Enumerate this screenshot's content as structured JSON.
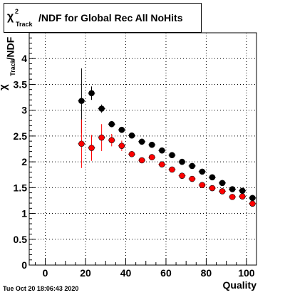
{
  "title": {
    "chi_symbol": "χ",
    "chi_sup": "2",
    "chi_sub": "Track",
    "rest": "/NDF for Global Rec All NoHits"
  },
  "axis_labels": {
    "y_ndf": "/NDF",
    "y_chi": "χ",
    "y_sup": "2",
    "y_sub": "Track",
    "x": "Quality"
  },
  "footer": {
    "timestamp": "Tue Oct 20 18:06:43 2020"
  },
  "colors": {
    "series_black": "#000000",
    "series_red": "#ff0000"
  },
  "chart_data": {
    "type": "scatter",
    "title": "χ2 Track /NDF for Global Rec All NoHits",
    "xlabel": "Quality",
    "ylabel": "χ2 Track /NDF",
    "xlim": [
      -8,
      105
    ],
    "ylim": [
      0,
      4.5
    ],
    "x_ticks": [
      0,
      20,
      40,
      60,
      80,
      100
    ],
    "y_ticks": [
      0,
      0.5,
      1,
      1.5,
      2,
      2.5,
      3,
      3.5,
      4
    ],
    "y_tick_labels": [
      "0",
      "0.5",
      "1",
      "1.5",
      "2",
      "2.5",
      "3",
      "3.5",
      "4"
    ],
    "grid": true,
    "legend": "none",
    "series": [
      {
        "color": "#000000",
        "x": [
          18,
          23,
          28,
          33,
          38,
          43,
          48,
          53,
          58,
          63,
          68,
          73,
          78,
          83,
          88,
          93,
          98,
          103
        ],
        "y": [
          3.18,
          3.33,
          3.03,
          2.73,
          2.62,
          2.51,
          2.39,
          2.33,
          2.22,
          2.13,
          2.0,
          1.92,
          1.81,
          1.7,
          1.59,
          1.47,
          1.44,
          1.3
        ],
        "yerr": [
          0.63,
          0.13,
          0.08,
          0.06,
          0.04,
          0.03,
          0.03,
          0.03,
          0.02,
          0.02,
          0.02,
          0.02,
          0.02,
          0.02,
          0.02,
          0.02,
          0.02,
          0.02
        ]
      },
      {
        "color": "#ff0000",
        "x": [
          18,
          23,
          28,
          33,
          38,
          43,
          48,
          53,
          58,
          63,
          68,
          73,
          78,
          83,
          88,
          93,
          98,
          103
        ],
        "y": [
          2.35,
          2.27,
          2.47,
          2.42,
          2.31,
          2.15,
          2.03,
          2.09,
          1.95,
          1.85,
          1.73,
          1.67,
          1.55,
          1.49,
          1.43,
          1.32,
          1.33,
          1.19
        ],
        "yerr": [
          0.47,
          0.25,
          0.26,
          0.12,
          0.1,
          0.05,
          0.04,
          0.04,
          0.03,
          0.03,
          0.03,
          0.03,
          0.02,
          0.02,
          0.02,
          0.02,
          0.02,
          0.02
        ]
      }
    ]
  }
}
